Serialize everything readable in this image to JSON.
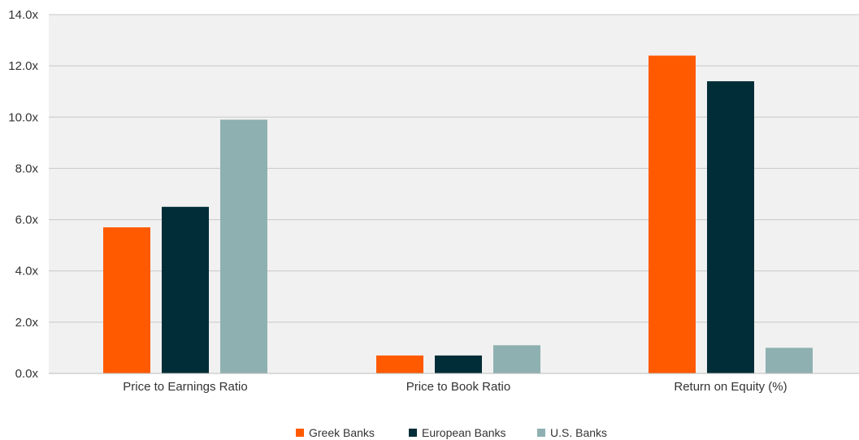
{
  "chart_data": {
    "type": "bar",
    "categories": [
      "Price to Earnings Ratio",
      "Price to Book Ratio",
      "Return on Equity (%)"
    ],
    "series": [
      {
        "name": "Greek Banks",
        "color": "#ff5a00",
        "values": [
          5.7,
          0.7,
          12.4
        ]
      },
      {
        "name": "European Banks",
        "color": "#002d37",
        "values": [
          6.5,
          0.7,
          11.4
        ]
      },
      {
        "name": "U.S. Banks",
        "color": "#8fb0b0",
        "values": [
          9.9,
          1.1,
          1.0
        ]
      }
    ],
    "y_ticks": [
      "0.0x",
      "2.0x",
      "4.0x",
      "6.0x",
      "8.0x",
      "10.0x",
      "12.0x",
      "14.0x"
    ],
    "ylim": [
      0,
      14
    ],
    "grid": true,
    "legend_position": "bottom-center",
    "plot_background": "#f1f1f1"
  }
}
